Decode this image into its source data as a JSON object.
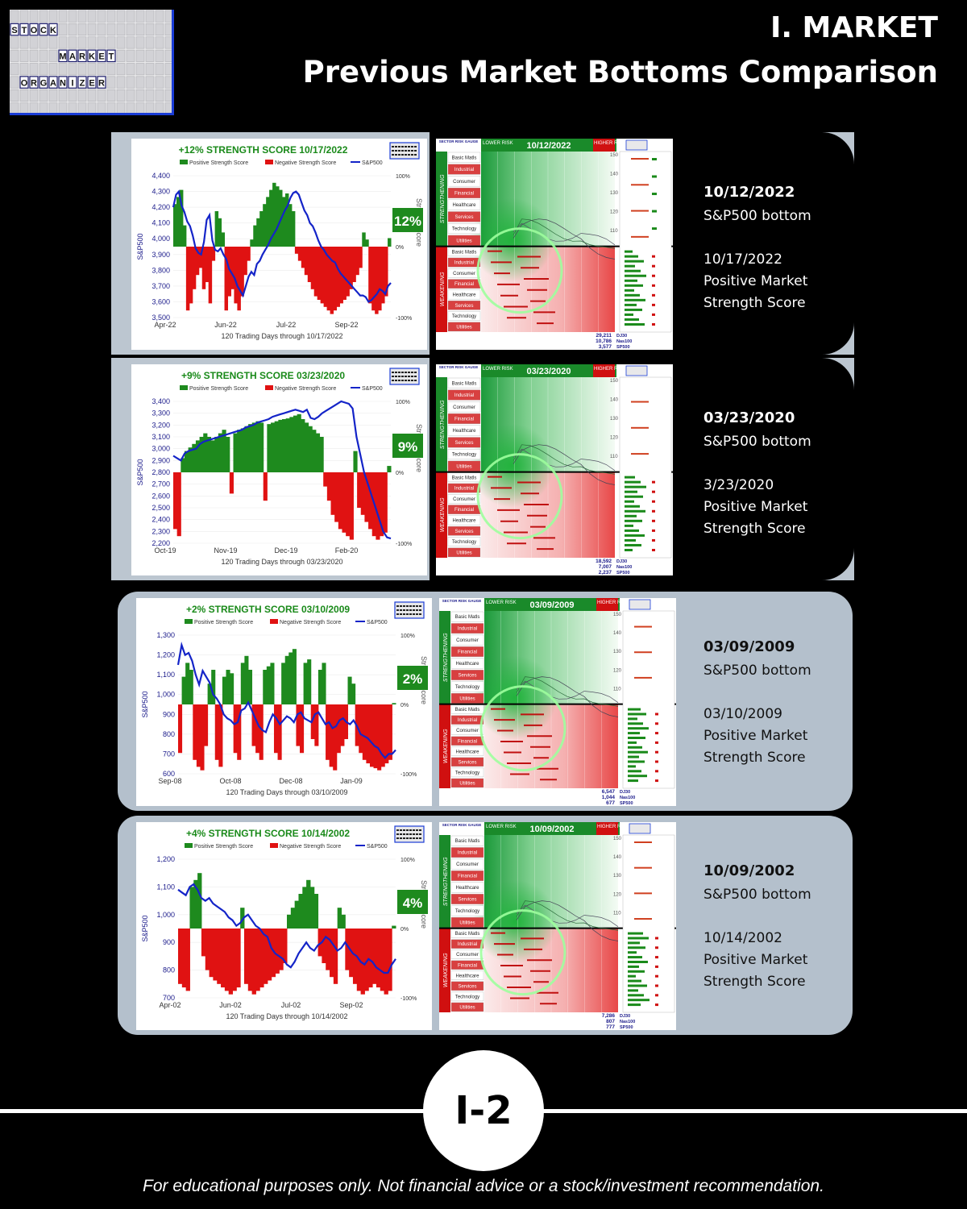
{
  "logo": {
    "row1": "STOCK",
    "row2": "MARKET",
    "row3": "ORGANIZER"
  },
  "header": {
    "section": "I. MARKET",
    "title": "Previous Market Bottoms Comparison"
  },
  "chart_data": [
    {
      "type": "bar",
      "title": "+12% STRENGTH SCORE 10/17/2022",
      "legend": [
        "Positive Strength Score",
        "Negative Strength Score",
        "S&P500"
      ],
      "xlabel": "120 Trading Days through 10/17/2022",
      "ylabel": "S&P500",
      "y2label": "Strength Score",
      "xticks": [
        "Apr-22",
        "Jun-22",
        "Jul-22",
        "Sep-22"
      ],
      "yticks": [
        "4,400",
        "4,300",
        "4,200",
        "4,100",
        "4,000",
        "3,900",
        "3,800",
        "3,700",
        "3,600",
        "3,500"
      ],
      "y2ticks": [
        "100%",
        "0%",
        "-100%"
      ],
      "ylim": [
        3500,
        4400
      ],
      "badge": "12%",
      "price": [
        4200,
        4280,
        4300,
        4210,
        4170,
        4110,
        4080,
        4020,
        3940,
        3910,
        3900,
        3980,
        4120,
        4150,
        3990,
        3930,
        3920,
        3940,
        3900,
        3870,
        3810,
        3780,
        3750,
        3700,
        3670,
        3640,
        3700,
        3760,
        3790,
        3770,
        3840,
        3860,
        3900,
        3930,
        3960,
        4000,
        4030,
        4060,
        4100,
        4140,
        4180,
        4210,
        4260,
        4290,
        4300,
        4280,
        4230,
        4180,
        4150,
        4100,
        4080,
        4040,
        3990,
        3950,
        3930,
        3900,
        3880,
        3860,
        3850,
        3810,
        3780,
        3760,
        3740,
        3720,
        3700,
        3680,
        3660,
        3640,
        3640,
        3630,
        3600,
        3610,
        3630,
        3650,
        3680,
        3670,
        3650,
        3700,
        3720
      ],
      "score": [
        0.6,
        0.7,
        0.8,
        0.3,
        -0.9,
        -0.8,
        -0.6,
        -0.4,
        -0.3,
        -0.6,
        -0.5,
        -0.8,
        -0.2,
        0.5,
        0.4,
        0.2,
        -0.9,
        -0.7,
        -0.6,
        -0.8,
        -0.9,
        -0.7,
        -0.4,
        -0.2,
        0.1,
        0.3,
        0.4,
        0.5,
        0.6,
        0.7,
        0.8,
        0.9,
        0.85,
        0.8,
        0.7,
        0.75,
        0.6,
        0.5,
        -0.1,
        -0.2,
        -0.3,
        -0.4,
        -0.5,
        -0.6,
        -0.7,
        -0.75,
        -0.8,
        -0.85,
        -0.9,
        -0.95,
        -0.9,
        -0.85,
        -0.8,
        -0.75,
        -0.7,
        -0.6,
        -0.5,
        -0.4,
        -0.3,
        0.2,
        0.1,
        -0.8,
        -0.9,
        -0.95,
        -0.9,
        -0.8,
        -0.7,
        0.12
      ],
      "sectors": [
        "Basic Matls",
        "Industrial",
        "Consumer",
        "Financial",
        "Healthcare",
        "Services",
        "Technology",
        "Utilities"
      ],
      "sector_panel": {
        "lower_risk": "LOWER RISK",
        "higher_risk": "HIGHER RISK",
        "date": "10/12/2022",
        "strengthening": "STRENGTHENING",
        "weakening": "WEAKENING",
        "gauge": "SECTOR RISK GAUGE"
      },
      "indexes": [
        {
          "value": "29,211",
          "name": "DJ30"
        },
        {
          "value": "10,786",
          "name": "Nas100"
        },
        {
          "value": "3,577",
          "name": "SP500"
        }
      ],
      "label_date": "10/12/2022",
      "label_date_text": "S&P500 bottom",
      "label_score_date": "10/17/2022",
      "label_score_text": "Positive Market Strength Score"
    },
    {
      "type": "bar",
      "title": "+9% STRENGTH SCORE 03/23/2020",
      "legend": [
        "Positive Strength Score",
        "Negative Strength Score",
        "S&P500"
      ],
      "xlabel": "120 Trading Days through 03/23/2020",
      "ylabel": "S&P500",
      "y2label": "Strength Score",
      "xticks": [
        "Oct-19",
        "Nov-19",
        "Dec-19",
        "Feb-20"
      ],
      "yticks": [
        "3,400",
        "3,300",
        "3,200",
        "3,100",
        "3,000",
        "2,900",
        "2,800",
        "2,700",
        "2,600",
        "2,500",
        "2,400",
        "2,300",
        "2,200"
      ],
      "y2ticks": [
        "100%",
        "0%",
        "-100%"
      ],
      "ylim": [
        2200,
        3400
      ],
      "badge": "9%",
      "price": [
        2940,
        2920,
        2900,
        2960,
        2980,
        2990,
        3000,
        3040,
        3060,
        3070,
        3080,
        3090,
        3100,
        3110,
        3120,
        3130,
        3140,
        3150,
        3160,
        3180,
        3190,
        3200,
        3220,
        3230,
        3240,
        3250,
        3270,
        3280,
        3290,
        3300,
        3310,
        3320,
        3330,
        3320,
        3310,
        3330,
        3260,
        3250,
        3270,
        3300,
        3320,
        3340,
        3360,
        3380,
        3400,
        3390,
        3380,
        3340,
        3100,
        2950,
        2800,
        2700,
        2600,
        2500,
        2400,
        2300,
        2250,
        2240
      ],
      "score": [
        -0.8,
        -0.9,
        0.2,
        0.3,
        0.35,
        0.4,
        0.45,
        0.5,
        0.55,
        0.5,
        0.45,
        0.5,
        0.55,
        0.6,
        0.5,
        -0.3,
        0.55,
        0.6,
        0.62,
        0.65,
        0.68,
        0.7,
        0.72,
        0.7,
        -0.4,
        0.68,
        0.7,
        0.72,
        0.74,
        0.75,
        0.76,
        0.78,
        0.8,
        0.82,
        0.75,
        0.7,
        0.65,
        0.6,
        0.55,
        0.5,
        -0.2,
        -0.4,
        -0.6,
        -0.7,
        -0.8,
        -0.85,
        -0.9,
        -0.95,
        0.3,
        -0.5,
        -0.6,
        -0.7,
        -0.8,
        -0.9,
        -0.95,
        -0.9,
        -0.85,
        0.09
      ],
      "sectors": [
        "Basic Matls",
        "Industrial",
        "Consumer",
        "Financial",
        "Healthcare",
        "Services",
        "Technology",
        "Utilities"
      ],
      "sector_panel": {
        "lower_risk": "LOWER RISK",
        "higher_risk": "HIGHER RISK",
        "date": "03/23/2020",
        "strengthening": "STRENGTHENING",
        "weakening": "WEAKENING",
        "gauge": "SECTOR RISK GAUGE"
      },
      "indexes": [
        {
          "value": "18,592",
          "name": "DJ30"
        },
        {
          "value": "7,007",
          "name": "Nas100"
        },
        {
          "value": "2,237",
          "name": "SP500"
        }
      ],
      "label_date": "03/23/2020",
      "label_date_text": "S&P500 bottom",
      "label_score_date": "3/23/2020",
      "label_score_text": "Positive Market Strength Score"
    },
    {
      "type": "bar",
      "title": "+2% STRENGTH SCORE 03/10/2009",
      "legend": [
        "Positive Strength Score",
        "Negative Strength Score",
        "S&P500"
      ],
      "xlabel": "120 Trading Days through 03/10/2009",
      "ylabel": "S&P500",
      "y2label": "Strength Score",
      "xticks": [
        "Sep-08",
        "Oct-08",
        "Dec-08",
        "Jan-09"
      ],
      "yticks": [
        "1,300",
        "1,200",
        "1,100",
        "1,000",
        "900",
        "800",
        "700",
        "600"
      ],
      "y2ticks": [
        "100%",
        "0%",
        "-100%"
      ],
      "ylim": [
        600,
        1300
      ],
      "badge": "2%",
      "price": [
        1150,
        1250,
        1200,
        1210,
        1170,
        1100,
        1050,
        1120,
        1090,
        1060,
        1000,
        980,
        950,
        900,
        880,
        870,
        850,
        860,
        920,
        930,
        960,
        920,
        880,
        840,
        820,
        810,
        860,
        900,
        880,
        850,
        870,
        890,
        880,
        860,
        900,
        910,
        880,
        870,
        860,
        900,
        910,
        880,
        850,
        860,
        830,
        840,
        870,
        880,
        860,
        850,
        870,
        840,
        800,
        790,
        780,
        760,
        740,
        730,
        700,
        680,
        700,
        700,
        720
      ],
      "score": [
        -0.7,
        0.4,
        0.6,
        0.5,
        -0.8,
        -0.9,
        -0.95,
        -0.6,
        0.3,
        0.5,
        -0.8,
        -0.9,
        0.4,
        0.5,
        0.45,
        -0.7,
        -0.8,
        0.6,
        0.7,
        0.5,
        -0.6,
        -0.7,
        -0.8,
        0.5,
        0.55,
        0.6,
        -0.7,
        -0.8,
        0.6,
        0.7,
        0.75,
        0.8,
        -0.6,
        -0.7,
        0.6,
        0.65,
        -0.5,
        -0.6,
        0.5,
        0.6,
        -0.8,
        -0.9,
        -0.95,
        -0.7,
        -0.6,
        -0.5,
        0.4,
        0.3,
        -0.6,
        -0.7,
        -0.8,
        -0.85,
        -0.9,
        -0.92,
        -0.95,
        -0.9,
        -0.85,
        -0.8,
        0.02
      ],
      "sectors": [
        "Basic Matls",
        "Industrial",
        "Consumer",
        "Financial",
        "Healthcare",
        "Services",
        "Technology",
        "Utilities"
      ],
      "sector_panel": {
        "lower_risk": "LOWER RISK",
        "higher_risk": "HIGHER RISK",
        "date": "03/09/2009",
        "strengthening": "STRENGTHENING",
        "weakening": "WEAKENING",
        "gauge": "SECTOR RISK GAUGE"
      },
      "indexes": [
        {
          "value": "6,547",
          "name": "DJ30"
        },
        {
          "value": "1,044",
          "name": "Nas100"
        },
        {
          "value": "677",
          "name": "SP500"
        }
      ],
      "label_date": "03/09/2009",
      "label_date_text": "S&P500 bottom",
      "label_score_date": "03/10/2009",
      "label_score_text": "Positive Market Strength Score"
    },
    {
      "type": "bar",
      "title": "+4% STRENGTH SCORE 10/14/2002",
      "legend": [
        "Positive Strength Score",
        "Negative Strength Score",
        "S&P500"
      ],
      "xlabel": "120 Trading Days through 10/14/2002",
      "ylabel": "S&P500",
      "y2label": "Strength Score",
      "xticks": [
        "Apr-02",
        "Jun-02",
        "Jul-02",
        "Sep-02"
      ],
      "yticks": [
        "1,200",
        "1,100",
        "1,000",
        "900",
        "800",
        "700"
      ],
      "y2ticks": [
        "100%",
        "0%",
        "-100%"
      ],
      "ylim": [
        700,
        1200
      ],
      "badge": "4%",
      "price": [
        1090,
        1080,
        1070,
        1100,
        1110,
        1090,
        1060,
        1050,
        1060,
        1040,
        1030,
        1020,
        1010,
        990,
        980,
        960,
        970,
        990,
        1000,
        980,
        960,
        950,
        930,
        920,
        880,
        860,
        850,
        840,
        820,
        810,
        830,
        860,
        880,
        900,
        880,
        870,
        890,
        900,
        920,
        910,
        890,
        870,
        880,
        900,
        880,
        860,
        850,
        830,
        820,
        840,
        830,
        810,
        800,
        790,
        790,
        820,
        840
      ],
      "score": [
        -0.8,
        -0.85,
        -0.9,
        0.6,
        0.7,
        0.8,
        -0.4,
        -0.6,
        -0.7,
        -0.75,
        -0.8,
        -0.85,
        -0.9,
        -0.95,
        -0.9,
        -0.85,
        0.3,
        -0.8,
        -0.9,
        -0.95,
        -0.9,
        -0.85,
        -0.8,
        -0.75,
        -0.7,
        -0.65,
        -0.6,
        -0.5,
        0.2,
        0.3,
        0.4,
        0.5,
        0.6,
        0.7,
        0.6,
        0.5,
        -0.4,
        -0.5,
        -0.6,
        -0.7,
        -0.8,
        0.3,
        0.2,
        -0.6,
        -0.7,
        -0.8,
        -0.9,
        -0.95,
        -0.9,
        -0.85,
        -0.8,
        -0.85,
        -0.9,
        -0.95,
        -0.9,
        0.04
      ],
      "sectors": [
        "Basic Matls",
        "Industrial",
        "Consumer",
        "Financial",
        "Healthcare",
        "Services",
        "Technology",
        "Utilities"
      ],
      "sector_panel": {
        "lower_risk": "LOWER RISK",
        "higher_risk": "HIGHER RISK",
        "date": "10/09/2002",
        "strengthening": "STRENGTHENING",
        "weakening": "WEAKENING",
        "gauge": "SECTOR RISK GAUGE"
      },
      "indexes": [
        {
          "value": "7,286",
          "name": "DJ30"
        },
        {
          "value": "807",
          "name": "Nas100"
        },
        {
          "value": "777",
          "name": "SP500"
        }
      ],
      "label_date": "10/09/2002",
      "label_date_text": "S&P500 bottom",
      "label_score_date": "10/14/2002",
      "label_score_text": "Positive Market Strength Score"
    }
  ],
  "page_number": "I-2",
  "disclaimer": "For educational purposes only. Not financial advice or a stock/investment recommendation.",
  "colors": {
    "positive": "#1e8a1e",
    "negative": "#e01212",
    "price_line": "#1424c8",
    "title_green": "#1a8a1a",
    "band_light": "#b4c0cc"
  }
}
